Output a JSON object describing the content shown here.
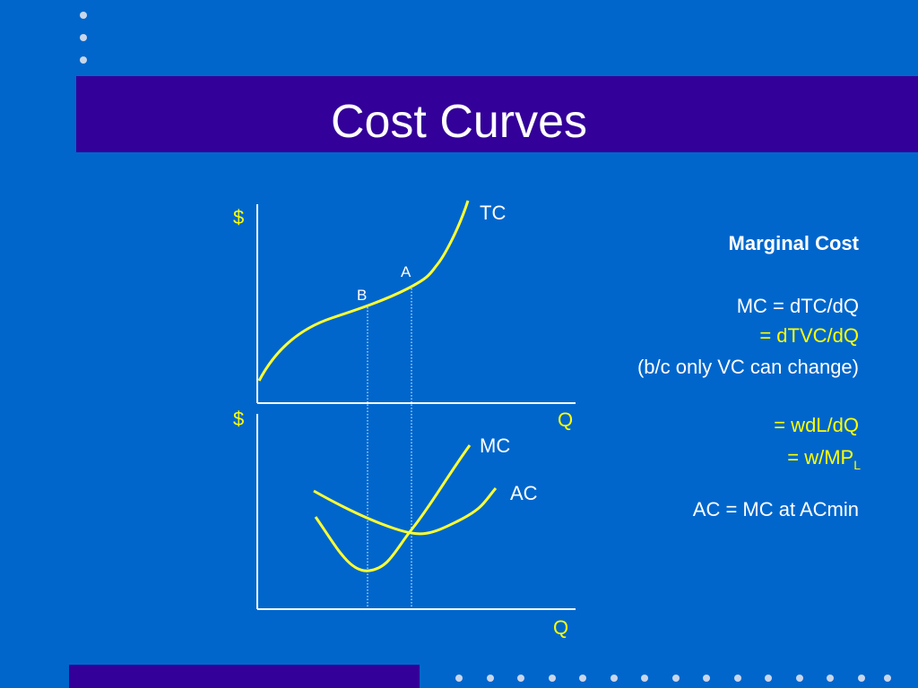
{
  "title": "Cost Curves",
  "upper_graph": {
    "y_label": "$",
    "curve_label": "TC",
    "point_a": "A",
    "point_b": "B",
    "x_label": "Q"
  },
  "lower_graph": {
    "y_label": "$",
    "mc_label": "MC",
    "ac_label": "AC",
    "x_label": "Q"
  },
  "notes": {
    "heading": "Marginal Cost",
    "mc_def": "MC = dTC/dQ",
    "tvc": "= dTVC/dQ",
    "reason": "(b/c only VC can change)",
    "wdl": "= wdL/dQ",
    "wmp": "= w/MP",
    "wmp_sub": "L",
    "ac": "AC = MC at ACmin"
  }
}
